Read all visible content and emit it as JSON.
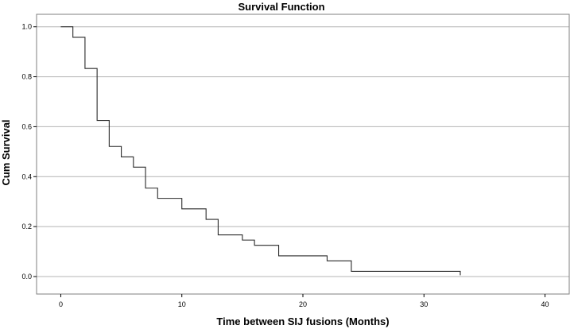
{
  "chart_data": {
    "type": "line",
    "title": "Survival Function",
    "xlabel": "Time between SIJ fusions (Months)",
    "ylabel": "Cum Survival",
    "xlim": [
      -2,
      42
    ],
    "ylim": [
      -0.07,
      1.05
    ],
    "xticks": [
      0,
      10,
      20,
      30,
      40
    ],
    "yticks": [
      0.0,
      0.2,
      0.4,
      0.6,
      0.8,
      1.0
    ],
    "xtick_labels": [
      "0",
      "10",
      "20",
      "30",
      "40"
    ],
    "ytick_labels": [
      "0.0",
      "0.2",
      "0.4",
      "0.6",
      "0.8",
      "1.0"
    ],
    "grid": "horizontal",
    "step": "post",
    "series": [
      {
        "x": [
          0,
          1,
          2,
          3,
          4,
          5,
          6,
          7,
          8,
          10,
          12,
          13,
          15,
          16,
          18,
          22,
          24,
          33
        ],
        "y": [
          1.0,
          0.958,
          0.833,
          0.625,
          0.521,
          0.479,
          0.438,
          0.354,
          0.313,
          0.271,
          0.229,
          0.167,
          0.146,
          0.125,
          0.083,
          0.063,
          0.021,
          0.005
        ]
      }
    ]
  }
}
